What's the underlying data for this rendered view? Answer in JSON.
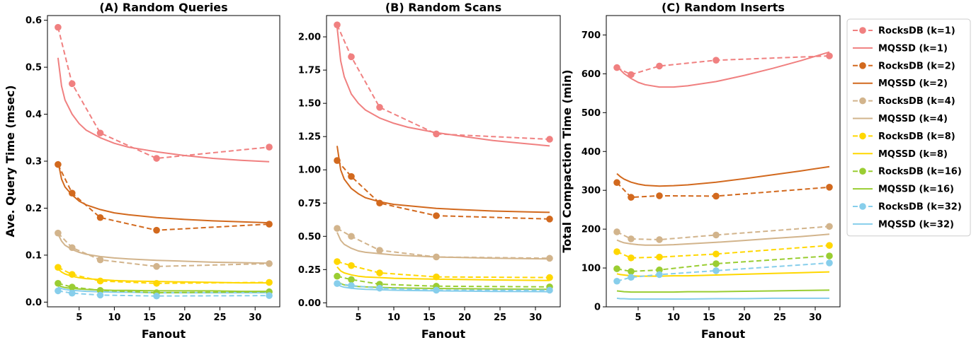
{
  "colors": {
    "k1": "#f08080",
    "k2": "#d2691e",
    "k4": "#d2b48c",
    "k8": "#ffd700",
    "k16": "#9acd32",
    "k32": "#87ceeb"
  },
  "chart_data": [
    {
      "type": "line",
      "title": "(A) Random Queries",
      "xlabel": "Fanout",
      "ylabel": "Ave. Query Time (msec)",
      "xlim": [
        0.5,
        33.5
      ],
      "ylim": [
        -0.01,
        0.61
      ],
      "xticks": [
        5,
        10,
        15,
        20,
        25,
        30
      ],
      "yticks": [
        0.0,
        0.1,
        0.2,
        0.3,
        0.4,
        0.5,
        0.6
      ],
      "ytick_labels": [
        "0.0",
        "0.1",
        "0.2",
        "0.3",
        "0.4",
        "0.5",
        "0.6"
      ],
      "rocksdb_x": [
        2,
        4,
        8,
        16,
        32
      ],
      "rocksdb": [
        {
          "k": "k1",
          "values": [
            0.585,
            0.465,
            0.36,
            0.306,
            0.33
          ]
        },
        {
          "k": "k2",
          "values": [
            0.293,
            0.232,
            0.18,
            0.153,
            0.166
          ]
        },
        {
          "k": "k4",
          "values": [
            0.147,
            0.116,
            0.09,
            0.076,
            0.082
          ]
        },
        {
          "k": "k8",
          "values": [
            0.074,
            0.059,
            0.045,
            0.04,
            0.042
          ]
        },
        {
          "k": "k16",
          "values": [
            0.04,
            0.032,
            0.025,
            0.02,
            0.022
          ]
        },
        {
          "k": "k32",
          "values": [
            0.024,
            0.019,
            0.015,
            0.013,
            0.014
          ]
        }
      ],
      "mqssd_x": [
        2,
        2.5,
        3,
        4,
        5,
        6,
        8,
        10,
        12,
        16,
        20,
        24,
        28,
        32
      ],
      "mqssd": [
        {
          "k": "k1",
          "values": [
            0.52,
            0.46,
            0.43,
            0.4,
            0.38,
            0.366,
            0.35,
            0.338,
            0.33,
            0.32,
            0.312,
            0.306,
            0.302,
            0.299
          ]
        },
        {
          "k": "k2",
          "values": [
            0.3,
            0.262,
            0.245,
            0.228,
            0.215,
            0.207,
            0.197,
            0.19,
            0.186,
            0.18,
            0.176,
            0.173,
            0.171,
            0.169
          ]
        },
        {
          "k": "k4",
          "values": [
            0.145,
            0.13,
            0.121,
            0.112,
            0.106,
            0.102,
            0.097,
            0.094,
            0.092,
            0.089,
            0.087,
            0.085,
            0.084,
            0.083
          ]
        },
        {
          "k": "k8",
          "values": [
            0.071,
            0.064,
            0.06,
            0.055,
            0.052,
            0.05,
            0.048,
            0.046,
            0.045,
            0.044,
            0.043,
            0.042,
            0.041,
            0.041
          ]
        },
        {
          "k": "k16",
          "values": [
            0.036,
            0.033,
            0.031,
            0.029,
            0.028,
            0.027,
            0.026,
            0.025,
            0.025,
            0.024,
            0.024,
            0.024,
            0.023,
            0.023
          ]
        },
        {
          "k": "k32",
          "values": [
            0.032,
            0.029,
            0.027,
            0.025,
            0.024,
            0.023,
            0.022,
            0.021,
            0.021,
            0.02,
            0.02,
            0.02,
            0.02,
            0.02
          ]
        }
      ]
    },
    {
      "type": "line",
      "title": "(B) Random Scans",
      "xlabel": "Fanout",
      "ylabel": "",
      "xlim": [
        0.5,
        33.5
      ],
      "ylim": [
        -0.03,
        2.16
      ],
      "xticks": [
        5,
        10,
        15,
        20,
        25,
        30
      ],
      "yticks": [
        0.0,
        0.25,
        0.5,
        0.75,
        1.0,
        1.25,
        1.5,
        1.75,
        2.0
      ],
      "ytick_labels": [
        "0.00",
        "0.25",
        "0.50",
        "0.75",
        "1.00",
        "1.25",
        "1.50",
        "1.75",
        "2.00"
      ],
      "rocksdb_x": [
        2,
        4,
        8,
        16,
        32
      ],
      "rocksdb": [
        {
          "k": "k1",
          "values": [
            2.09,
            1.85,
            1.47,
            1.27,
            1.23
          ]
        },
        {
          "k": "k2",
          "values": [
            1.07,
            0.95,
            0.75,
            0.655,
            0.63
          ]
        },
        {
          "k": "k4",
          "values": [
            0.56,
            0.5,
            0.395,
            0.345,
            0.335
          ]
        },
        {
          "k": "k8",
          "values": [
            0.31,
            0.28,
            0.225,
            0.195,
            0.19
          ]
        },
        {
          "k": "k16",
          "values": [
            0.2,
            0.175,
            0.14,
            0.125,
            0.12
          ]
        },
        {
          "k": "k32",
          "values": [
            0.145,
            0.13,
            0.11,
            0.095,
            0.095
          ]
        }
      ],
      "mqssd_x": [
        2,
        2.5,
        3,
        4,
        5,
        6,
        8,
        10,
        12,
        16,
        20,
        24,
        28,
        32
      ],
      "mqssd": [
        {
          "k": "k1",
          "values": [
            2.07,
            1.82,
            1.7,
            1.57,
            1.5,
            1.45,
            1.39,
            1.35,
            1.32,
            1.28,
            1.25,
            1.22,
            1.2,
            1.18
          ]
        },
        {
          "k": "k2",
          "values": [
            1.18,
            1.0,
            0.93,
            0.86,
            0.82,
            0.79,
            0.76,
            0.74,
            0.73,
            0.71,
            0.7,
            0.69,
            0.685,
            0.68
          ]
        },
        {
          "k": "k4",
          "values": [
            0.53,
            0.47,
            0.44,
            0.41,
            0.39,
            0.38,
            0.37,
            0.36,
            0.355,
            0.345,
            0.34,
            0.335,
            0.333,
            0.33
          ]
        },
        {
          "k": "k8",
          "values": [
            0.27,
            0.24,
            0.225,
            0.21,
            0.2,
            0.195,
            0.19,
            0.185,
            0.182,
            0.178,
            0.175,
            0.172,
            0.17,
            0.168
          ]
        },
        {
          "k": "k16",
          "values": [
            0.165,
            0.145,
            0.135,
            0.128,
            0.123,
            0.12,
            0.116,
            0.113,
            0.111,
            0.108,
            0.106,
            0.104,
            0.103,
            0.102
          ]
        },
        {
          "k": "k32",
          "values": [
            0.14,
            0.125,
            0.117,
            0.11,
            0.105,
            0.102,
            0.098,
            0.095,
            0.093,
            0.09,
            0.088,
            0.086,
            0.085,
            0.084
          ]
        }
      ]
    },
    {
      "type": "line",
      "title": "(C) Random Inserts",
      "xlabel": "Fanout",
      "ylabel": "Total Compaction Time (min)",
      "xlim": [
        0.5,
        33.5
      ],
      "ylim": [
        0,
        750
      ],
      "xticks": [
        5,
        10,
        15,
        20,
        25,
        30
      ],
      "yticks": [
        0,
        100,
        200,
        300,
        400,
        500,
        600,
        700
      ],
      "ytick_labels": [
        "0",
        "100",
        "200",
        "300",
        "400",
        "500",
        "600",
        "700"
      ],
      "rocksdb_x": [
        2,
        4,
        8,
        16,
        32
      ],
      "rocksdb": [
        {
          "k": "k1",
          "values": [
            616,
            598,
            620,
            635,
            646
          ]
        },
        {
          "k": "k2",
          "values": [
            320,
            282,
            286,
            285,
            308
          ]
        },
        {
          "k": "k4",
          "values": [
            193,
            175,
            173,
            185,
            207
          ]
        },
        {
          "k": "k8",
          "values": [
            142,
            126,
            128,
            136,
            158
          ]
        },
        {
          "k": "k16",
          "values": [
            98,
            91,
            95,
            111,
            131
          ]
        },
        {
          "k": "k32",
          "values": [
            66,
            76,
            83,
            93,
            113
          ]
        }
      ],
      "mqssd_x": [
        2,
        2.5,
        3,
        4,
        5,
        6,
        8,
        10,
        12,
        16,
        20,
        24,
        28,
        32
      ],
      "mqssd": [
        {
          "k": "k1",
          "values": [
            620,
            610,
            601,
            588,
            578,
            572,
            566,
            566,
            569,
            580,
            596,
            614,
            634,
            656
          ]
        },
        {
          "k": "k2",
          "values": [
            343,
            335,
            329,
            321,
            316,
            313,
            311,
            312,
            314,
            321,
            330,
            340,
            350,
            361
          ]
        },
        {
          "k": "k4",
          "values": [
            172,
            168,
            165,
            162,
            160,
            159,
            159,
            160,
            162,
            166,
            171,
            176,
            181,
            187
          ]
        },
        {
          "k": "k8",
          "values": [
            85,
            83,
            82,
            80,
            79,
            79,
            79,
            80,
            80,
            82,
            84,
            86,
            88,
            90
          ]
        },
        {
          "k": "k16",
          "values": [
            41,
            40,
            39,
            38,
            38,
            38,
            38,
            38,
            39,
            39,
            40,
            41,
            42,
            43
          ]
        },
        {
          "k": "k32",
          "values": [
            22,
            21,
            21,
            20,
            20,
            20,
            20,
            20,
            20,
            21,
            21,
            22,
            22,
            22
          ]
        }
      ]
    }
  ],
  "legend": {
    "placement": "right",
    "entries": [
      {
        "label": "RocksDB (k=1)",
        "k": "k1",
        "style": "dashed-marker"
      },
      {
        "label": "MQSSD (k=1)",
        "k": "k1",
        "style": "solid"
      },
      {
        "label": "RocksDB (k=2)",
        "k": "k2",
        "style": "dashed-marker"
      },
      {
        "label": "MQSSD (k=2)",
        "k": "k2",
        "style": "solid"
      },
      {
        "label": "RocksDB (k=4)",
        "k": "k4",
        "style": "dashed-marker"
      },
      {
        "label": "MQSSD (k=4)",
        "k": "k4",
        "style": "solid"
      },
      {
        "label": "RocksDB (k=8)",
        "k": "k8",
        "style": "dashed-marker"
      },
      {
        "label": "MQSSD (k=8)",
        "k": "k8",
        "style": "solid"
      },
      {
        "label": "RocksDB (k=16)",
        "k": "k16",
        "style": "dashed-marker"
      },
      {
        "label": "MQSSD (k=16)",
        "k": "k16",
        "style": "solid"
      },
      {
        "label": "RocksDB (k=32)",
        "k": "k32",
        "style": "dashed-marker"
      },
      {
        "label": "MQSSD (k=32)",
        "k": "k32",
        "style": "solid"
      }
    ]
  }
}
